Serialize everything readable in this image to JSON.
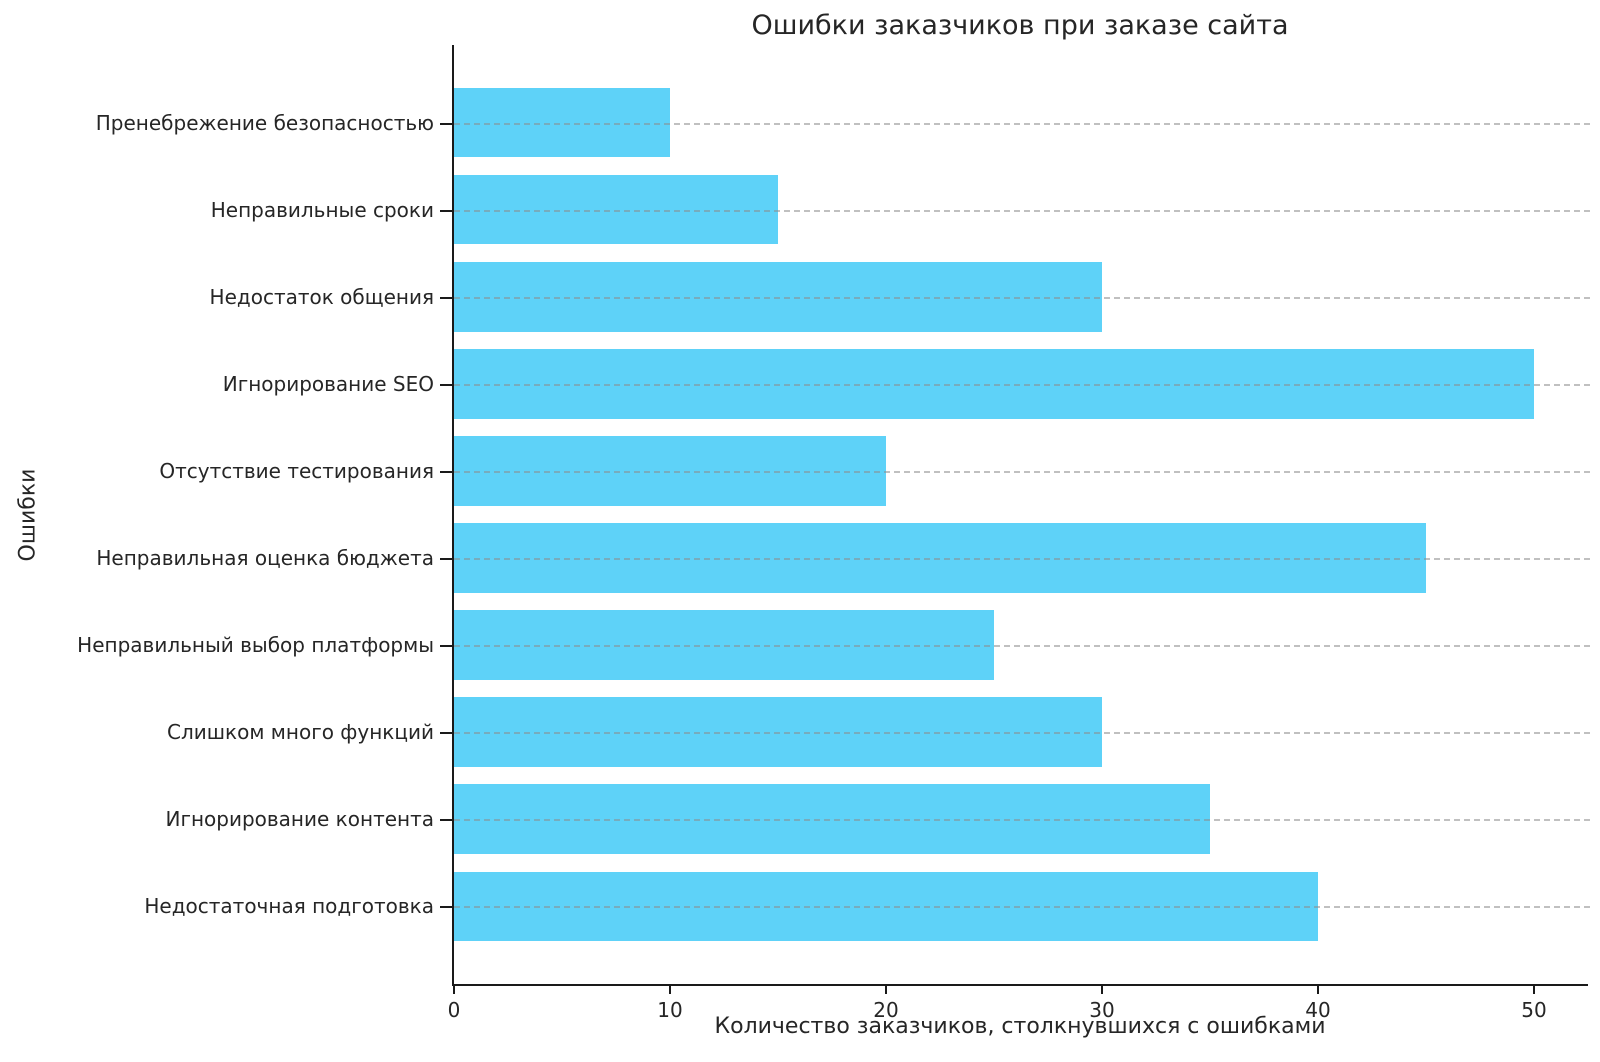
{
  "chart_data": {
    "type": "bar",
    "orientation": "horizontal",
    "title": "Ошибки заказчиков при заказе сайта",
    "xlabel": "Количество заказчиков, столкнувшихся с ошибками",
    "ylabel": "Ошибки",
    "categories": [
      "Пренебрежение безопасностью",
      "Неправильные сроки",
      "Недостаток общения",
      "Игнорирование SEO",
      "Отсутствие тестирования",
      "Неправильная оценка бюджета",
      "Неправильный выбор платформы",
      "Слишком много функций",
      "Игнорирование контента",
      "Недостаточная подготовка"
    ],
    "values": [
      10,
      15,
      30,
      50,
      20,
      45,
      25,
      30,
      35,
      40
    ],
    "xticks": [
      0,
      10,
      20,
      30,
      40,
      50
    ],
    "xlim": [
      0,
      52.5
    ],
    "bar_color": "#5ED2F8",
    "grid": {
      "axis": "y",
      "style": "dashed",
      "color": "#8c8c8c"
    },
    "legend": null
  }
}
